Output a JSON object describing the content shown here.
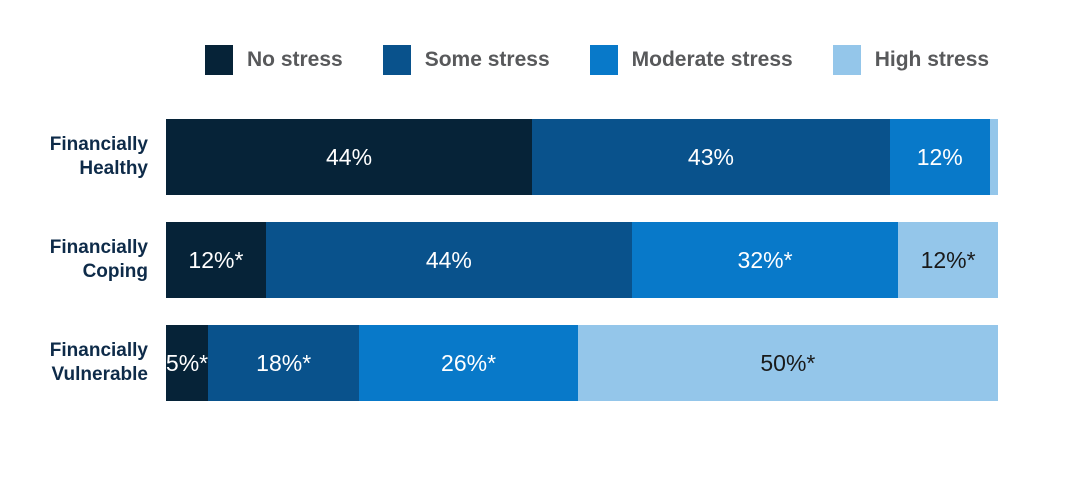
{
  "style": {
    "background": "#ffffff",
    "legend_text_color": "#58595b",
    "category_label_color": "#0e2b49"
  },
  "chart_data": {
    "type": "bar",
    "variant": "horizontal-stacked-100",
    "title": "",
    "legend_position": "top",
    "xlim": [
      0,
      100
    ],
    "unit": "%",
    "series": [
      {
        "name": "No stress",
        "color": "#062338",
        "label_text_color": "#ffffff"
      },
      {
        "name": "Some stress",
        "color": "#09528c",
        "label_text_color": "#ffffff"
      },
      {
        "name": "Moderate stress",
        "color": "#0879c9",
        "label_text_color": "#ffffff"
      },
      {
        "name": "High stress",
        "color": "#94c6ea",
        "label_text_color": "#1a1a1a"
      }
    ],
    "categories": [
      "Financially Healthy",
      "Financially Coping",
      "Financially Vulnerable"
    ],
    "rows": [
      {
        "category": "Financially Healthy",
        "values": [
          44,
          43,
          12,
          1
        ],
        "labels": [
          "44%",
          "43%",
          "12%",
          ""
        ]
      },
      {
        "category": "Financially Coping",
        "values": [
          12,
          44,
          32,
          12
        ],
        "labels": [
          "12%*",
          "44%",
          "32%*",
          "12%*"
        ]
      },
      {
        "category": "Financially Vulnerable",
        "values": [
          5,
          18,
          26,
          50
        ],
        "labels": [
          "5%*",
          "18%*",
          "26%*",
          "50%*"
        ]
      }
    ]
  }
}
